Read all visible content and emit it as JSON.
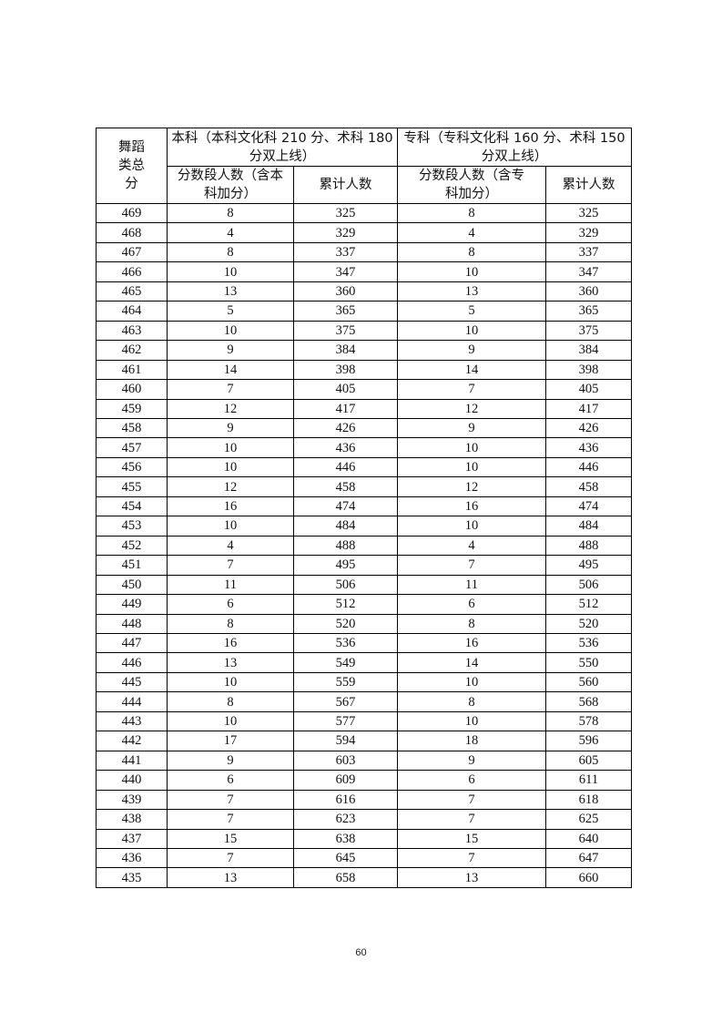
{
  "table": {
    "header": {
      "score_col": "舞蹈类总分",
      "undergrad_group": "本科（本科文化科 210 分、术科 180 分双上线）",
      "junior_group": "专科（专科文化科 160 分、术科 150 分双上线）",
      "undergrad_segment": "分数段人数（含本科加分）",
      "undergrad_cumulative": "累计人数",
      "junior_segment": "分数段人数（含专科加分）",
      "junior_cumulative": "累计人数"
    },
    "rows": [
      [
        "469",
        "8",
        "325",
        "8",
        "325"
      ],
      [
        "468",
        "4",
        "329",
        "4",
        "329"
      ],
      [
        "467",
        "8",
        "337",
        "8",
        "337"
      ],
      [
        "466",
        "10",
        "347",
        "10",
        "347"
      ],
      [
        "465",
        "13",
        "360",
        "13",
        "360"
      ],
      [
        "464",
        "5",
        "365",
        "5",
        "365"
      ],
      [
        "463",
        "10",
        "375",
        "10",
        "375"
      ],
      [
        "462",
        "9",
        "384",
        "9",
        "384"
      ],
      [
        "461",
        "14",
        "398",
        "14",
        "398"
      ],
      [
        "460",
        "7",
        "405",
        "7",
        "405"
      ],
      [
        "459",
        "12",
        "417",
        "12",
        "417"
      ],
      [
        "458",
        "9",
        "426",
        "9",
        "426"
      ],
      [
        "457",
        "10",
        "436",
        "10",
        "436"
      ],
      [
        "456",
        "10",
        "446",
        "10",
        "446"
      ],
      [
        "455",
        "12",
        "458",
        "12",
        "458"
      ],
      [
        "454",
        "16",
        "474",
        "16",
        "474"
      ],
      [
        "453",
        "10",
        "484",
        "10",
        "484"
      ],
      [
        "452",
        "4",
        "488",
        "4",
        "488"
      ],
      [
        "451",
        "7",
        "495",
        "7",
        "495"
      ],
      [
        "450",
        "11",
        "506",
        "11",
        "506"
      ],
      [
        "449",
        "6",
        "512",
        "6",
        "512"
      ],
      [
        "448",
        "8",
        "520",
        "8",
        "520"
      ],
      [
        "447",
        "16",
        "536",
        "16",
        "536"
      ],
      [
        "446",
        "13",
        "549",
        "14",
        "550"
      ],
      [
        "445",
        "10",
        "559",
        "10",
        "560"
      ],
      [
        "444",
        "8",
        "567",
        "8",
        "568"
      ],
      [
        "443",
        "10",
        "577",
        "10",
        "578"
      ],
      [
        "442",
        "17",
        "594",
        "18",
        "596"
      ],
      [
        "441",
        "9",
        "603",
        "9",
        "605"
      ],
      [
        "440",
        "6",
        "609",
        "6",
        "611"
      ],
      [
        "439",
        "7",
        "616",
        "7",
        "618"
      ],
      [
        "438",
        "7",
        "623",
        "7",
        "625"
      ],
      [
        "437",
        "15",
        "638",
        "15",
        "640"
      ],
      [
        "436",
        "7",
        "645",
        "7",
        "647"
      ],
      [
        "435",
        "13",
        "658",
        "13",
        "660"
      ]
    ]
  },
  "page_number": "60"
}
